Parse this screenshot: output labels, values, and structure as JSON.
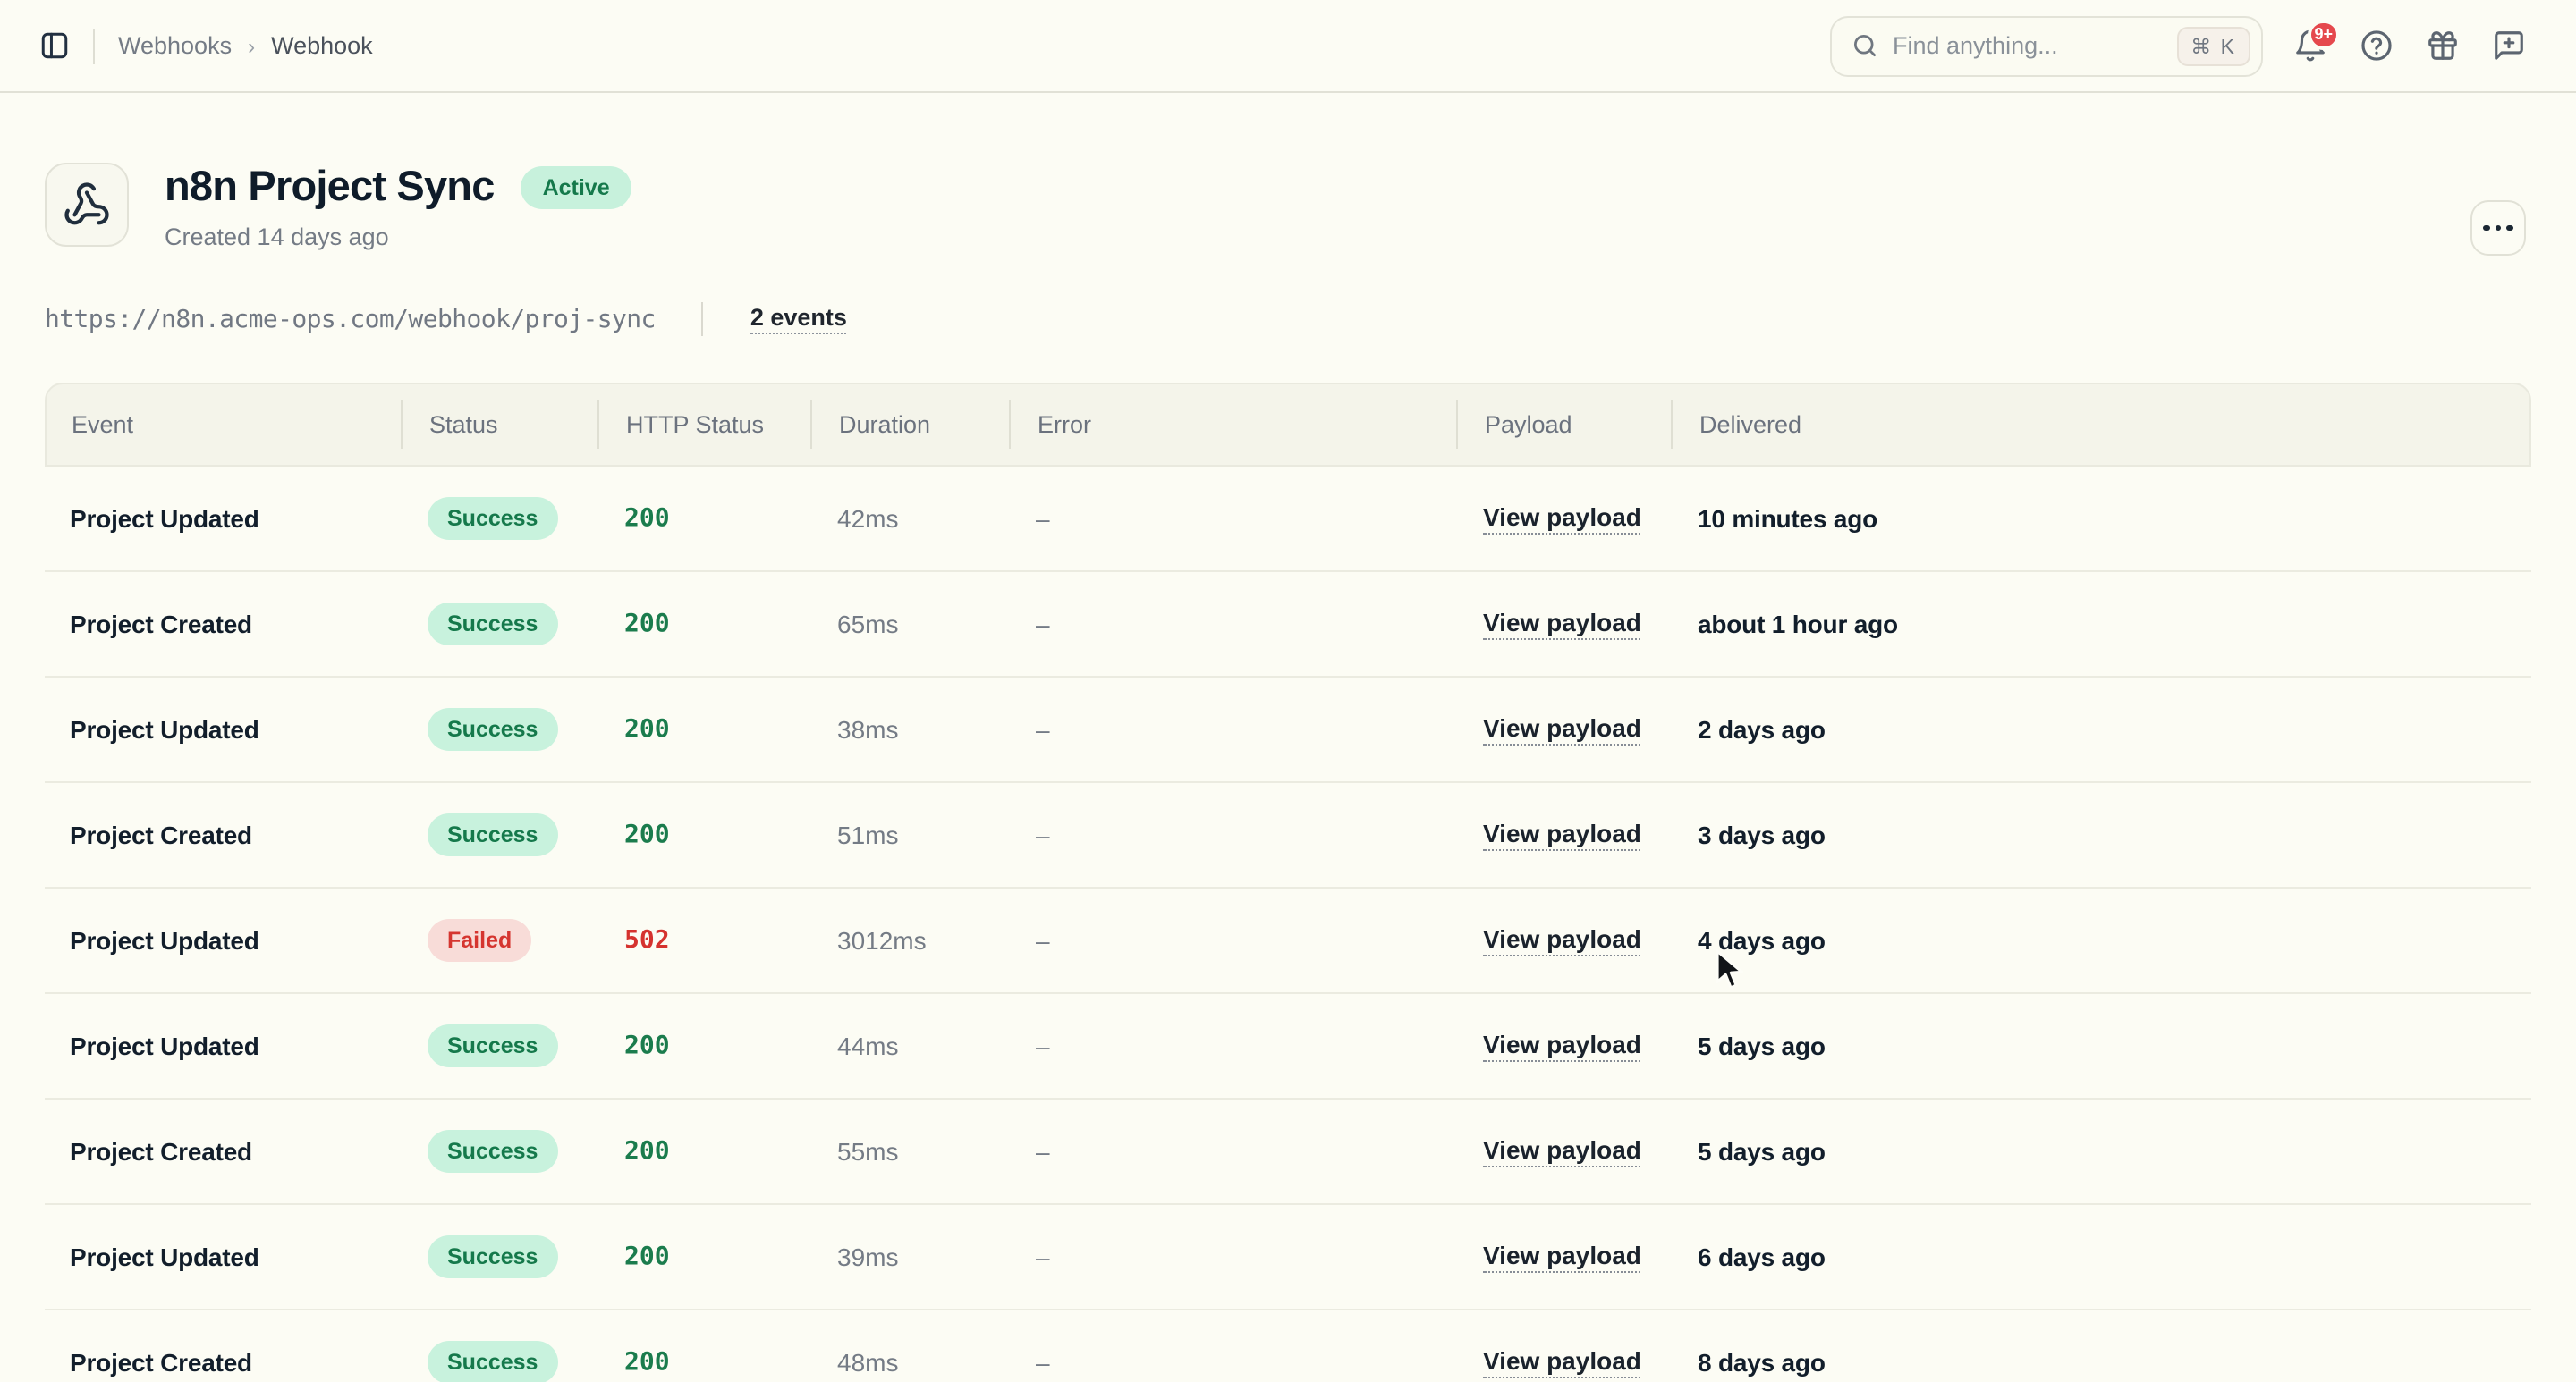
{
  "topbar": {
    "breadcrumb": {
      "parent": "Webhooks",
      "separator": "›",
      "current": "Webhook"
    },
    "search": {
      "placeholder": "Find anything...",
      "shortcut": "⌘ K"
    },
    "notifications_count": "9+"
  },
  "header": {
    "title": "n8n Project Sync",
    "status_badge": "Active",
    "created": "Created 14 days ago"
  },
  "webhook": {
    "url": "https://n8n.acme-ops.com/webhook/proj-sync",
    "events_link": "2 events"
  },
  "table": {
    "columns": [
      "Event",
      "Status",
      "HTTP Status",
      "Duration",
      "Error",
      "Payload",
      "Delivered"
    ],
    "payload_link": "View payload",
    "rows": [
      {
        "event": "Project Updated",
        "status": "Success",
        "http": "200",
        "duration": "42ms",
        "error": "–",
        "delivered": "10 minutes ago"
      },
      {
        "event": "Project Created",
        "status": "Success",
        "http": "200",
        "duration": "65ms",
        "error": "–",
        "delivered": "about 1 hour ago"
      },
      {
        "event": "Project Updated",
        "status": "Success",
        "http": "200",
        "duration": "38ms",
        "error": "–",
        "delivered": "2 days ago"
      },
      {
        "event": "Project Created",
        "status": "Success",
        "http": "200",
        "duration": "51ms",
        "error": "–",
        "delivered": "3 days ago"
      },
      {
        "event": "Project Updated",
        "status": "Failed",
        "http": "502",
        "duration": "3012ms",
        "error": "–",
        "delivered": "4 days ago"
      },
      {
        "event": "Project Updated",
        "status": "Success",
        "http": "200",
        "duration": "44ms",
        "error": "–",
        "delivered": "5 days ago"
      },
      {
        "event": "Project Created",
        "status": "Success",
        "http": "200",
        "duration": "55ms",
        "error": "–",
        "delivered": "5 days ago"
      },
      {
        "event": "Project Updated",
        "status": "Success",
        "http": "200",
        "duration": "39ms",
        "error": "–",
        "delivered": "6 days ago"
      },
      {
        "event": "Project Created",
        "status": "Success",
        "http": "200",
        "duration": "48ms",
        "error": "–",
        "delivered": "8 days ago"
      }
    ]
  },
  "colors": {
    "page_bg": "#FCFCF4",
    "success_bg": "#C8F2DD",
    "success_text": "#15794B",
    "failed_bg": "#F8DCD8",
    "failed_text": "#D5352F",
    "notification_red": "#E5484D"
  }
}
